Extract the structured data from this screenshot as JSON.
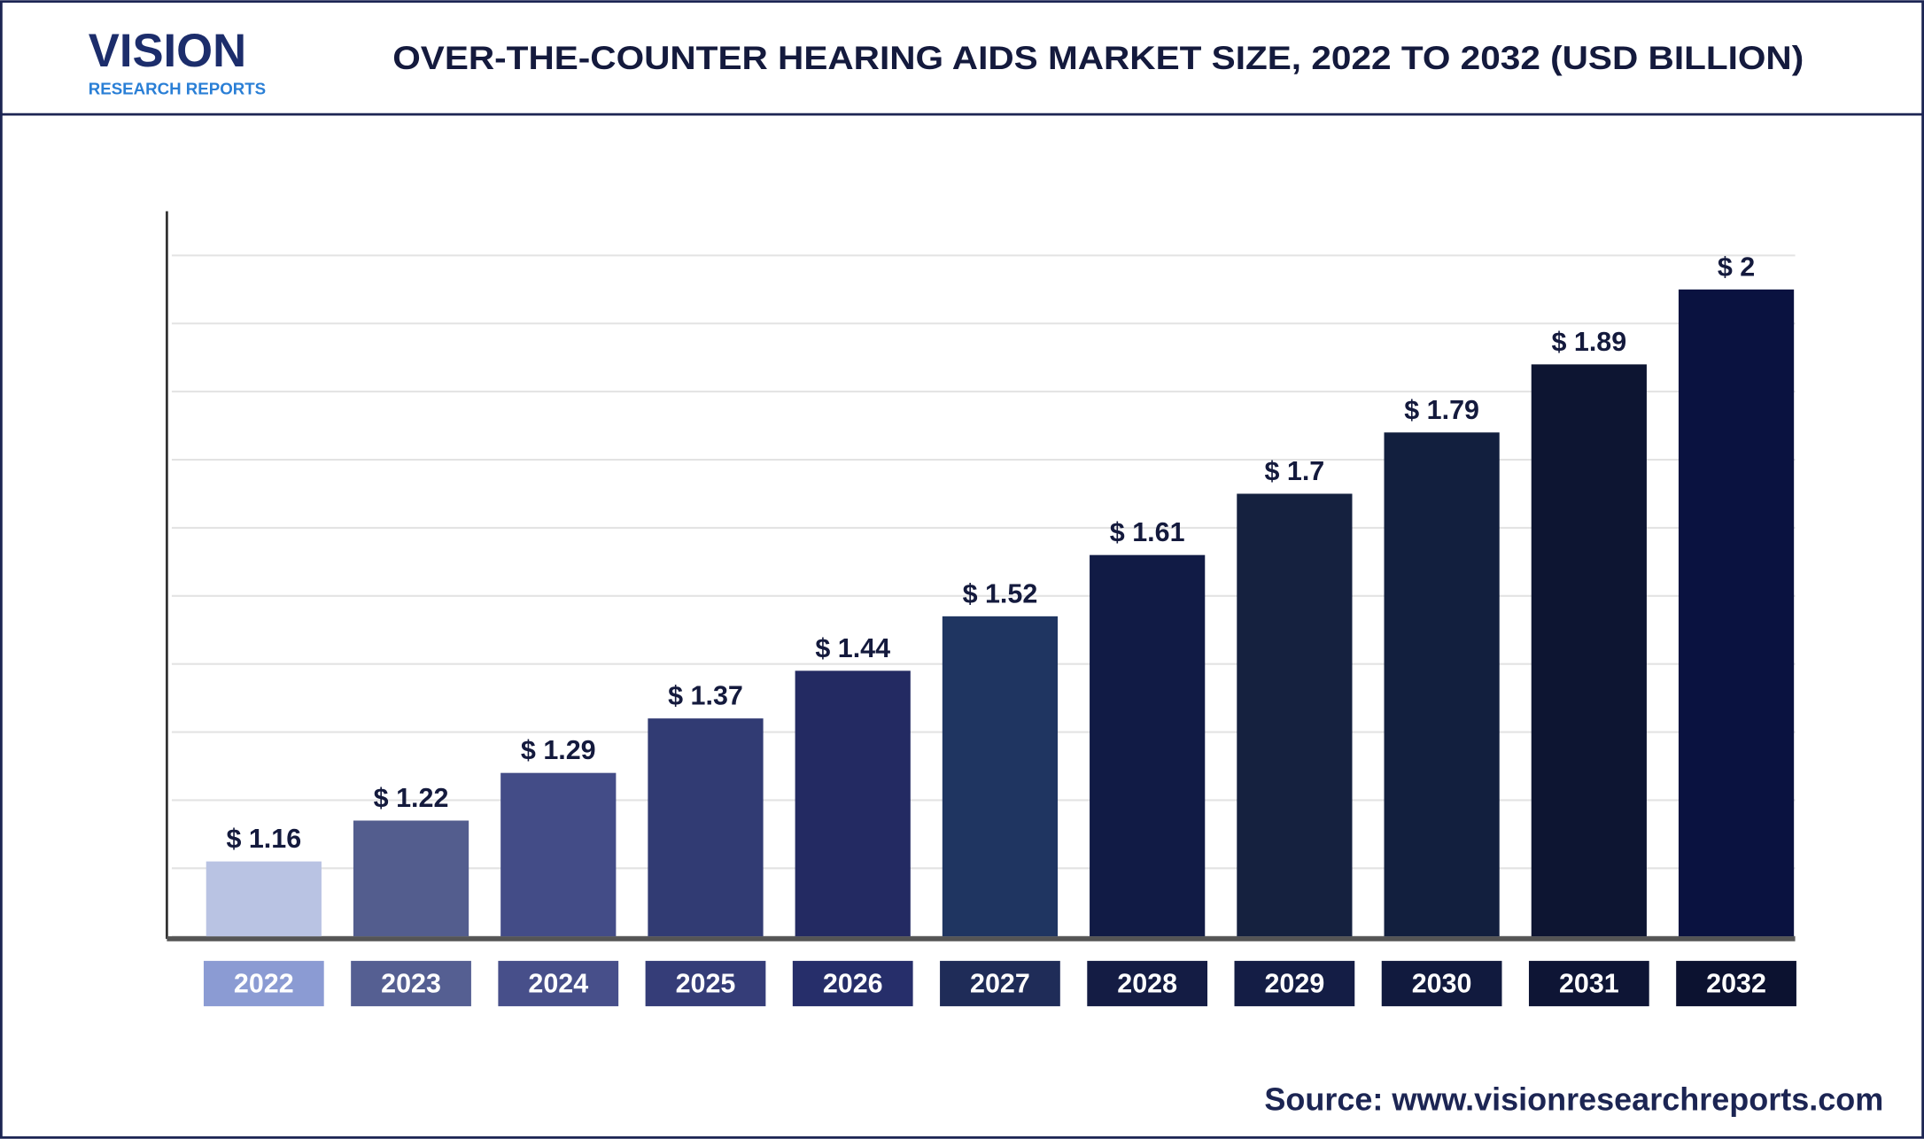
{
  "brand": {
    "name": "VISION",
    "tagline": "RESEARCH REPORTS"
  },
  "chart_data": {
    "type": "bar",
    "title": "OVER-THE-COUNTER HEARING AIDS MARKET SIZE, 2022 TO 2032 (USD BILLION)",
    "categories": [
      "2022",
      "2023",
      "2024",
      "2025",
      "2026",
      "2027",
      "2028",
      "2029",
      "2030",
      "2031",
      "2032"
    ],
    "values": [
      1.16,
      1.22,
      1.29,
      1.37,
      1.44,
      1.52,
      1.61,
      1.7,
      1.79,
      1.89,
      2
    ],
    "value_labels": [
      "$ 1.16",
      "$ 1.22",
      "$ 1.29",
      "$ 1.37",
      "$ 1.44",
      "$ 1.52",
      "$ 1.61",
      "$ 1.7",
      "$ 1.79",
      "$ 1.89",
      "$ 2"
    ],
    "colors": [
      "#b9c3e3",
      "#535d8e",
      "#434c87",
      "#313b73",
      "#232a62",
      "#1f3561",
      "#111b45",
      "#15213f",
      "#121f3e",
      "#0d1532",
      "#0a1240"
    ],
    "category_colors": [
      "#8b9bd3",
      "#555f92",
      "#474f8a",
      "#353d78",
      "#262e6a",
      "#1f2c58",
      "#141c44",
      "#141d45",
      "#111a3e",
      "#0e1535",
      "#0c1230"
    ],
    "ylim": [
      1.05,
      2.05
    ],
    "yticks": [
      1.05,
      1.15,
      1.25,
      1.35,
      1.45,
      1.55,
      1.65,
      1.75,
      1.85,
      1.95,
      2.05
    ],
    "grid": true
  },
  "source": "Source: www.visionresearchreports.com"
}
